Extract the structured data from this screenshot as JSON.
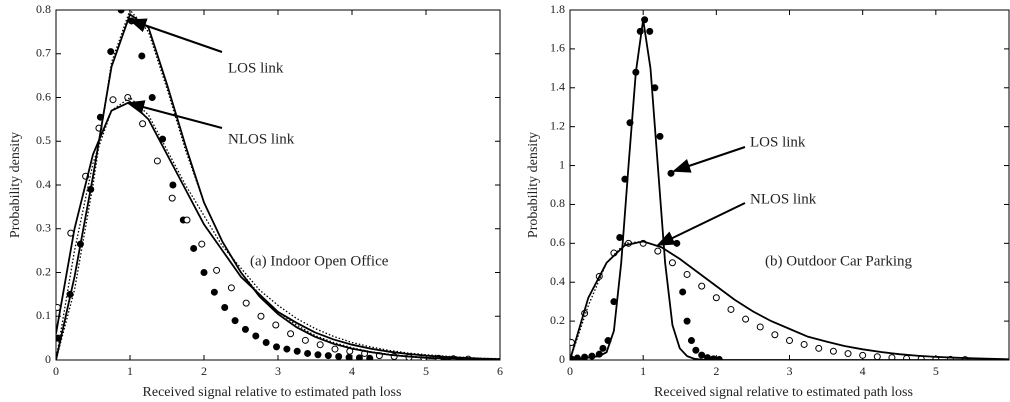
{
  "chart_data": [
    {
      "type": "line",
      "xlabel": "Received signal relative to estimated path loss",
      "ylabel": "Probability density",
      "xlim": [
        0,
        6
      ],
      "ylim": [
        0,
        0.8
      ],
      "xticks": [
        0,
        1,
        2,
        3,
        4,
        5,
        6
      ],
      "yticks": [
        0,
        0.1,
        0.2,
        0.3,
        0.4,
        0.5,
        0.6,
        0.7,
        0.8
      ],
      "annotations": [
        "LOS link",
        "NLOS link",
        "(a) Indoor Open Office"
      ],
      "series": [
        {
          "color": "#000000",
          "marker": "filled",
          "x": [
            0.02,
            0.19,
            0.33,
            0.47,
            0.6,
            0.74,
            0.88,
            1.02,
            1.16,
            1.3,
            1.44,
            1.58,
            1.72,
            1.86,
            2.0,
            2.14,
            2.28,
            2.42,
            2.56,
            2.7,
            2.84,
            2.98,
            3.12,
            3.26,
            3.4,
            3.54,
            3.68,
            3.82,
            3.96,
            4.1,
            4.24
          ],
          "values": [
            0.05,
            0.15,
            0.265,
            0.39,
            0.555,
            0.705,
            0.8,
            0.775,
            0.695,
            0.6,
            0.505,
            0.4,
            0.32,
            0.255,
            0.2,
            0.155,
            0.12,
            0.09,
            0.07,
            0.055,
            0.04,
            0.03,
            0.025,
            0.02,
            0.015,
            0.012,
            0.01,
            0.008,
            0.006,
            0.005,
            0.004
          ]
        },
        {
          "color": "#000000",
          "marker": "open",
          "x": [
            0.02,
            0.2,
            0.4,
            0.58,
            0.77,
            0.97,
            1.17,
            1.37,
            1.57,
            1.77,
            1.97,
            2.17,
            2.37,
            2.57,
            2.77,
            2.97,
            3.17,
            3.37,
            3.57,
            3.77,
            3.97,
            4.17,
            4.37,
            4.57,
            4.77,
            4.97,
            5.17,
            5.37,
            5.57
          ],
          "values": [
            0.12,
            0.29,
            0.42,
            0.53,
            0.595,
            0.6,
            0.54,
            0.455,
            0.37,
            0.32,
            0.265,
            0.205,
            0.165,
            0.13,
            0.1,
            0.08,
            0.06,
            0.045,
            0.035,
            0.025,
            0.02,
            0.015,
            0.01,
            0.008,
            0.006,
            0.005,
            0.004,
            0.003,
            0.002
          ]
        },
        {
          "color": "#000000",
          "line": "solid",
          "x": [
            0,
            0.25,
            0.5,
            0.75,
            1,
            1.25,
            1.5,
            1.75,
            2,
            2.25,
            2.5,
            2.75,
            3,
            3.25,
            3.5,
            3.75,
            4,
            4.25,
            4.5,
            4.75,
            5,
            5.25,
            5.5,
            5.75,
            6
          ],
          "values": [
            0,
            0.19,
            0.42,
            0.67,
            0.79,
            0.76,
            0.63,
            0.49,
            0.36,
            0.27,
            0.2,
            0.145,
            0.105,
            0.075,
            0.053,
            0.037,
            0.026,
            0.018,
            0.012,
            0.008,
            0.005,
            0.003,
            0.002,
            0.001,
            0
          ]
        },
        {
          "color": "#000000",
          "line": "dotted",
          "x": [
            0,
            0.25,
            0.5,
            0.75,
            1,
            1.25,
            1.5,
            1.75,
            2,
            2.25,
            2.5,
            2.75,
            3,
            3.25,
            3.5,
            3.75,
            4,
            4.25,
            4.5,
            4.75,
            5,
            5.25,
            5.5,
            5.75,
            6
          ],
          "values": [
            0,
            0.16,
            0.4,
            0.68,
            0.8,
            0.75,
            0.62,
            0.48,
            0.36,
            0.27,
            0.2,
            0.15,
            0.11,
            0.08,
            0.056,
            0.04,
            0.028,
            0.019,
            0.013,
            0.009,
            0.006,
            0.004,
            0.002,
            0.001,
            0
          ]
        },
        {
          "color": "#000000",
          "line": "solid",
          "x": [
            0,
            0.25,
            0.5,
            0.75,
            1,
            1.25,
            1.5,
            1.75,
            2,
            2.25,
            2.5,
            2.75,
            3,
            3.25,
            3.5,
            3.75,
            4,
            4.25,
            4.5,
            4.75,
            5,
            5.25,
            5.5,
            5.75,
            6
          ],
          "values": [
            0.06,
            0.3,
            0.47,
            0.57,
            0.59,
            0.55,
            0.47,
            0.39,
            0.31,
            0.25,
            0.19,
            0.15,
            0.11,
            0.085,
            0.063,
            0.047,
            0.035,
            0.026,
            0.019,
            0.014,
            0.01,
            0.007,
            0.005,
            0.003,
            0.002
          ]
        },
        {
          "color": "#000000",
          "line": "dotted",
          "x": [
            0,
            0.25,
            0.5,
            0.75,
            1,
            1.25,
            1.5,
            1.75,
            2,
            2.25,
            2.5,
            2.75,
            3,
            3.25,
            3.5,
            3.75,
            4,
            4.25,
            4.5,
            4.75,
            5,
            5.25,
            5.5,
            5.75,
            6
          ],
          "values": [
            0,
            0.25,
            0.45,
            0.57,
            0.6,
            0.56,
            0.48,
            0.4,
            0.33,
            0.26,
            0.21,
            0.16,
            0.125,
            0.095,
            0.072,
            0.054,
            0.04,
            0.03,
            0.022,
            0.016,
            0.012,
            0.009,
            0.006,
            0.004,
            0.003
          ]
        }
      ]
    },
    {
      "type": "line",
      "xlabel": "Received signal relative to estimated path loss",
      "ylabel": "Probability density",
      "xlim": [
        0,
        6
      ],
      "ylim": [
        0,
        1.8
      ],
      "xticks": [
        0,
        1,
        2,
        3,
        4,
        5
      ],
      "yticks": [
        0,
        0.2,
        0.4,
        0.6,
        0.8,
        1,
        1.2,
        1.4,
        1.6,
        1.8
      ],
      "annotations": [
        "LOS link",
        "NLOS link",
        "(b) Outdoor Car Parking"
      ],
      "series": [
        {
          "color": "#000000",
          "marker": "filled",
          "x": [
            0.02,
            0.1,
            0.2,
            0.3,
            0.4,
            0.45,
            0.52,
            0.6,
            0.68,
            0.75,
            0.82,
            0.9,
            0.96,
            1.02,
            1.09,
            1.16,
            1.23,
            1.38,
            1.46,
            1.54,
            1.6,
            1.66,
            1.72,
            1.8,
            1.88,
            1.96,
            2.04
          ],
          "values": [
            0.005,
            0.01,
            0.015,
            0.02,
            0.03,
            0.06,
            0.1,
            0.3,
            0.63,
            0.93,
            1.22,
            1.48,
            1.69,
            1.75,
            1.69,
            1.4,
            1.15,
            0.96,
            0.6,
            0.35,
            0.2,
            0.1,
            0.05,
            0.025,
            0.012,
            0.006,
            0.003
          ]
        },
        {
          "color": "#000000",
          "marker": "open",
          "x": [
            0.02,
            0.2,
            0.4,
            0.6,
            0.8,
            1.0,
            1.2,
            1.4,
            1.6,
            1.8,
            2.0,
            2.2,
            2.4,
            2.6,
            2.8,
            3.0,
            3.2,
            3.4,
            3.6,
            3.8,
            4.0,
            4.2,
            4.4,
            4.6,
            4.8,
            5.0,
            5.2,
            5.4
          ],
          "values": [
            0.09,
            0.24,
            0.43,
            0.55,
            0.6,
            0.6,
            0.56,
            0.5,
            0.44,
            0.38,
            0.32,
            0.26,
            0.21,
            0.17,
            0.13,
            0.1,
            0.08,
            0.06,
            0.045,
            0.033,
            0.024,
            0.017,
            0.012,
            0.008,
            0.006,
            0.004,
            0.003,
            0.002
          ]
        },
        {
          "color": "#000000",
          "line": "solid",
          "x": [
            0,
            0.1,
            0.2,
            0.3,
            0.4,
            0.5,
            0.6,
            0.7,
            0.8,
            0.9,
            1.0,
            1.1,
            1.2,
            1.3,
            1.4,
            1.5,
            1.6,
            1.7,
            1.8,
            1.9,
            2.0,
            2.1,
            2.2,
            6
          ],
          "values": [
            0,
            0.005,
            0.01,
            0.015,
            0.02,
            0.04,
            0.15,
            0.5,
            1.0,
            1.48,
            1.75,
            1.5,
            1.0,
            0.5,
            0.18,
            0.06,
            0.02,
            0.006,
            0.002,
            0.001,
            0,
            0,
            0,
            0
          ]
        },
        {
          "color": "#000000",
          "line": "solid",
          "x": [
            0,
            0.25,
            0.5,
            0.75,
            1,
            1.25,
            1.5,
            1.75,
            2,
            2.25,
            2.5,
            2.75,
            3,
            3.25,
            3.5,
            3.75,
            4,
            4.25,
            4.5,
            4.75,
            5,
            5.25,
            5.5,
            5.75,
            6
          ],
          "values": [
            0,
            0.32,
            0.5,
            0.59,
            0.61,
            0.58,
            0.52,
            0.45,
            0.38,
            0.31,
            0.25,
            0.2,
            0.16,
            0.12,
            0.095,
            0.072,
            0.055,
            0.041,
            0.03,
            0.022,
            0.016,
            0.012,
            0.009,
            0.006,
            0.004
          ]
        },
        {
          "color": "#000000",
          "line": "dotted",
          "x": [
            0,
            0.25,
            0.5,
            0.75,
            1,
            1.25,
            1.5,
            1.75,
            2,
            2.25,
            2.5,
            2.75,
            3,
            3.25,
            3.5,
            3.75,
            4,
            4.25,
            4.5,
            4.75,
            5,
            5.25,
            5.5,
            5.75,
            6
          ],
          "values": [
            0,
            0.28,
            0.5,
            0.6,
            0.61,
            0.58,
            0.52,
            0.45,
            0.38,
            0.31,
            0.25,
            0.2,
            0.16,
            0.12,
            0.095,
            0.072,
            0.055,
            0.041,
            0.03,
            0.022,
            0.016,
            0.012,
            0.009,
            0.006,
            0.004
          ]
        }
      ]
    }
  ]
}
